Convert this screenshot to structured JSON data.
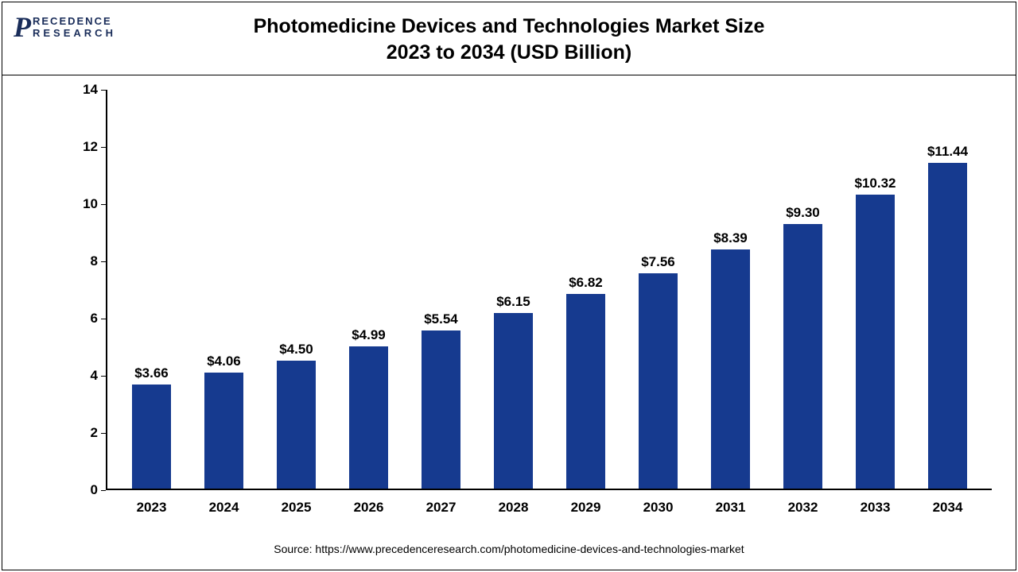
{
  "logo": {
    "brand_top": "RECEDENCE",
    "brand_bottom": "RESEARCH"
  },
  "chart": {
    "type": "bar",
    "title_line1": "Photomedicine Devices and Technologies Market Size",
    "title_line2": "2023 to 2034 (USD Billion)",
    "title_fontsize": 25,
    "bar_color": "#163a8f",
    "background_color": "#ffffff",
    "axis_color": "#000000",
    "label_fontsize": 17,
    "ylim": [
      0,
      14
    ],
    "ytick_step": 2,
    "yticks": [
      0,
      2,
      4,
      6,
      8,
      10,
      12,
      14
    ],
    "categories": [
      "2023",
      "2024",
      "2025",
      "2026",
      "2027",
      "2028",
      "2029",
      "2030",
      "2031",
      "2032",
      "2033",
      "2034"
    ],
    "values": [
      3.66,
      4.06,
      4.5,
      4.99,
      5.54,
      6.15,
      6.82,
      7.56,
      8.39,
      9.3,
      10.32,
      11.44
    ],
    "value_labels": [
      "$3.66",
      "$4.06",
      "$4.50",
      "$4.99",
      "$5.54",
      "$6.15",
      "$6.82",
      "$7.56",
      "$8.39",
      "$9.30",
      "$10.32",
      "$11.44"
    ],
    "bar_width": 0.54
  },
  "source": "Source: https://www.precedenceresearch.com/photomedicine-devices-and-technologies-market"
}
